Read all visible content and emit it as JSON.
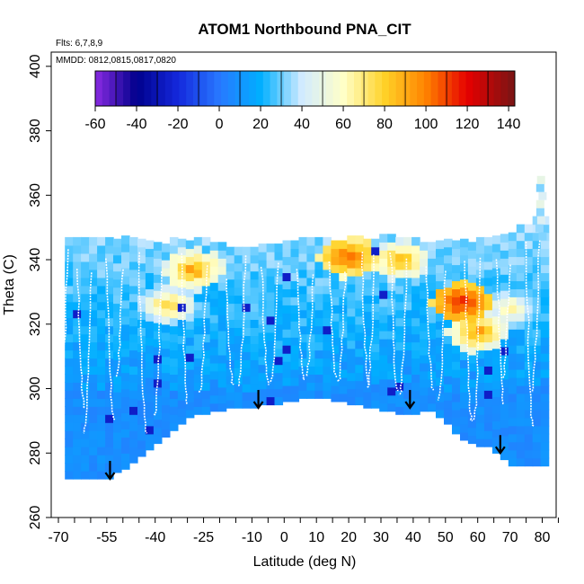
{
  "chart_data": {
    "type": "heatmap",
    "title": "ATOM1 Northbound PNA_CIT",
    "annotations": {
      "flights": "Flts: 6,7,8,9",
      "dates": "MMDD: 0812,0815,0817,0820"
    },
    "xlabel": "Latitude (deg N)",
    "ylabel": "Theta (C)",
    "xlim": [
      -70,
      85
    ],
    "ylim": [
      260,
      405
    ],
    "x_tick_labels": [
      "-70",
      "-55",
      "-40",
      "-25",
      "-10",
      "0",
      "10",
      "20",
      "30",
      "40",
      "50",
      "60",
      "70",
      "80"
    ],
    "y_tick_labels": [
      "260",
      "280",
      "300",
      "320",
      "340",
      "360",
      "380",
      "400"
    ],
    "colorbar": {
      "min": -60,
      "max": 143,
      "tick_labels": [
        "-60",
        "-40",
        "-20",
        "0",
        "20",
        "40",
        "60",
        "80",
        "100",
        "120",
        "140"
      ]
    },
    "arrows": [
      {
        "lat": -54,
        "theta": 272
      },
      {
        "lat": -8,
        "theta": 294
      },
      {
        "lat": 39,
        "theta": 294
      },
      {
        "lat": 67,
        "theta": 280
      }
    ],
    "boundary": {
      "lats": [
        -68,
        -56,
        -48,
        -38,
        -28,
        -18,
        -8,
        0,
        10,
        20,
        30,
        38,
        46,
        56,
        64,
        72,
        80
      ],
      "top": [
        346,
        346,
        346,
        345,
        345,
        344,
        344,
        344,
        345,
        346,
        346,
        345,
        345,
        345,
        346,
        348,
        352
      ],
      "bottom": [
        272,
        272,
        276,
        285,
        292,
        294,
        295,
        296,
        298,
        296,
        294,
        292,
        294,
        284,
        282,
        276,
        276
      ]
    },
    "hotspots": [
      {
        "lat": -28,
        "theta": 337,
        "value": 95
      },
      {
        "lat": 20,
        "theta": 341,
        "value": 110
      },
      {
        "lat": 36,
        "theta": 340,
        "value": 90
      },
      {
        "lat": 55,
        "theta": 327,
        "value": 122
      },
      {
        "lat": 60,
        "theta": 318,
        "value": 95
      },
      {
        "lat": -36,
        "theta": 326,
        "value": 80
      },
      {
        "lat": 70,
        "theta": 325,
        "value": 70
      }
    ]
  }
}
